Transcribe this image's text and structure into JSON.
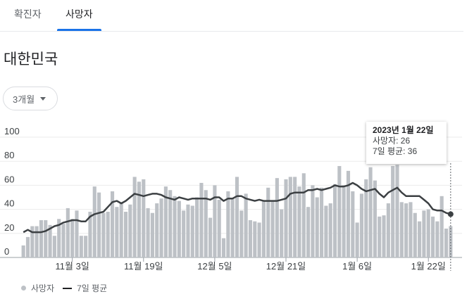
{
  "tabs": [
    {
      "label": "확진자",
      "selected": false
    },
    {
      "label": "사망자",
      "selected": true
    }
  ],
  "region": "대한민국",
  "range_selector": {
    "label": "3개월"
  },
  "tooltip": {
    "date": "2023년 1월 22일",
    "deaths": "사망자: 26",
    "avg": "7일 평균: 36"
  },
  "legend": {
    "bars": "사망자",
    "line": "7일 평균"
  },
  "colors": {
    "accent": "#1a73e8",
    "bar": "#bdc1c6",
    "line": "#3c4043",
    "grid": "#ebebeb"
  },
  "chart_data": {
    "type": "bar",
    "ylim": [
      0,
      100
    ],
    "yticks": [
      0,
      20,
      40,
      60,
      80,
      100
    ],
    "xtick_labels": [
      "11월 3일",
      "11월 19일",
      "12월 5일",
      "12월 21일",
      "1월 6일",
      "1월 22일"
    ],
    "xtick_indices": [
      11,
      27,
      43,
      59,
      75,
      91
    ],
    "series": [
      {
        "name": "사망자",
        "type": "bar",
        "values": [
          10,
          17,
          26,
          26,
          31,
          31,
          27,
          18,
          32,
          28,
          41,
          32,
          39,
          18,
          18,
          38,
          59,
          54,
          37,
          38,
          55,
          42,
          46,
          38,
          44,
          67,
          63,
          65,
          41,
          37,
          45,
          49,
          59,
          56,
          51,
          47,
          39,
          44,
          43,
          50,
          62,
          56,
          33,
          60,
          48,
          16,
          55,
          49,
          67,
          39,
          53,
          31,
          30,
          29,
          47,
          58,
          47,
          66,
          40,
          65,
          67,
          67,
          59,
          70,
          42,
          60,
          50,
          58,
          43,
          45,
          61,
          76,
          60,
          72,
          55,
          29,
          53,
          65,
          75,
          64,
          34,
          35,
          45,
          76,
          77,
          46,
          45,
          46,
          37,
          30,
          39,
          40,
          34,
          30,
          51,
          24,
          26
        ]
      },
      {
        "name": "7일 평균",
        "type": "line",
        "values": [
          21,
          23,
          21,
          21,
          21,
          22,
          24,
          26,
          27,
          29,
          30,
          31,
          31,
          30,
          30,
          34,
          36,
          37,
          38,
          42,
          46,
          47,
          45,
          47,
          50,
          53,
          52,
          51,
          52,
          53,
          53,
          52,
          50,
          49,
          48,
          50,
          49,
          48,
          49,
          49,
          49,
          49,
          48,
          50,
          50,
          47,
          49,
          49,
          51,
          51,
          49,
          48,
          47,
          48,
          47,
          47,
          47,
          47,
          48,
          49,
          53,
          54,
          54,
          54,
          56,
          56,
          57,
          56,
          57,
          58,
          60,
          59,
          59,
          60,
          62,
          60,
          57,
          55,
          56,
          57,
          53,
          50,
          54,
          56,
          58,
          54,
          51,
          51,
          51,
          51,
          48,
          45,
          40,
          39,
          39,
          37,
          36
        ]
      }
    ]
  }
}
